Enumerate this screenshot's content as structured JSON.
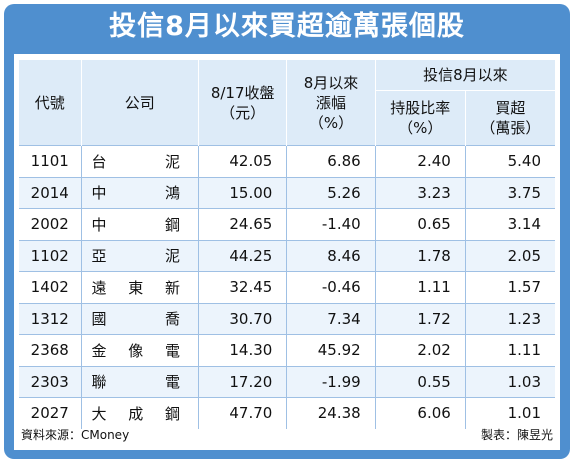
{
  "title": "投信8月以來買超逾萬張個股",
  "header": {
    "code": "代號",
    "company": "公司",
    "close_line1": "8/17收盤",
    "close_line2": "（元）",
    "change_line1": "8月以來",
    "change_line2": "漲幅",
    "change_line3": "（%）",
    "group": "投信8月以來",
    "hold_line1": "持股比率",
    "hold_line2": "（%）",
    "buy_line1": "買超",
    "buy_line2": "（萬張）"
  },
  "rows": [
    {
      "code": "1101",
      "company": "台泥",
      "close": "42.05",
      "change": "6.86",
      "hold": "2.40",
      "buy": "5.40"
    },
    {
      "code": "2014",
      "company": "中鴻",
      "close": "15.00",
      "change": "5.26",
      "hold": "3.23",
      "buy": "3.75"
    },
    {
      "code": "2002",
      "company": "中鋼",
      "close": "24.65",
      "change": "-1.40",
      "hold": "0.65",
      "buy": "3.14"
    },
    {
      "code": "1102",
      "company": "亞泥",
      "close": "44.25",
      "change": "8.46",
      "hold": "1.78",
      "buy": "2.05"
    },
    {
      "code": "1402",
      "company": "遠東新",
      "close": "32.45",
      "change": "-0.46",
      "hold": "1.11",
      "buy": "1.57"
    },
    {
      "code": "1312",
      "company": "國喬",
      "close": "30.70",
      "change": "7.34",
      "hold": "1.72",
      "buy": "1.23"
    },
    {
      "code": "2368",
      "company": "金像電",
      "close": "14.30",
      "change": "45.92",
      "hold": "2.02",
      "buy": "1.11"
    },
    {
      "code": "2303",
      "company": "聯電",
      "close": "17.20",
      "change": "-1.99",
      "hold": "0.55",
      "buy": "1.03"
    },
    {
      "code": "2027",
      "company": "大成鋼",
      "close": "47.70",
      "change": "24.38",
      "hold": "6.06",
      "buy": "1.01"
    }
  ],
  "footer": {
    "source": "資料來源：CMoney",
    "credit": "製表：陳昱光"
  }
}
